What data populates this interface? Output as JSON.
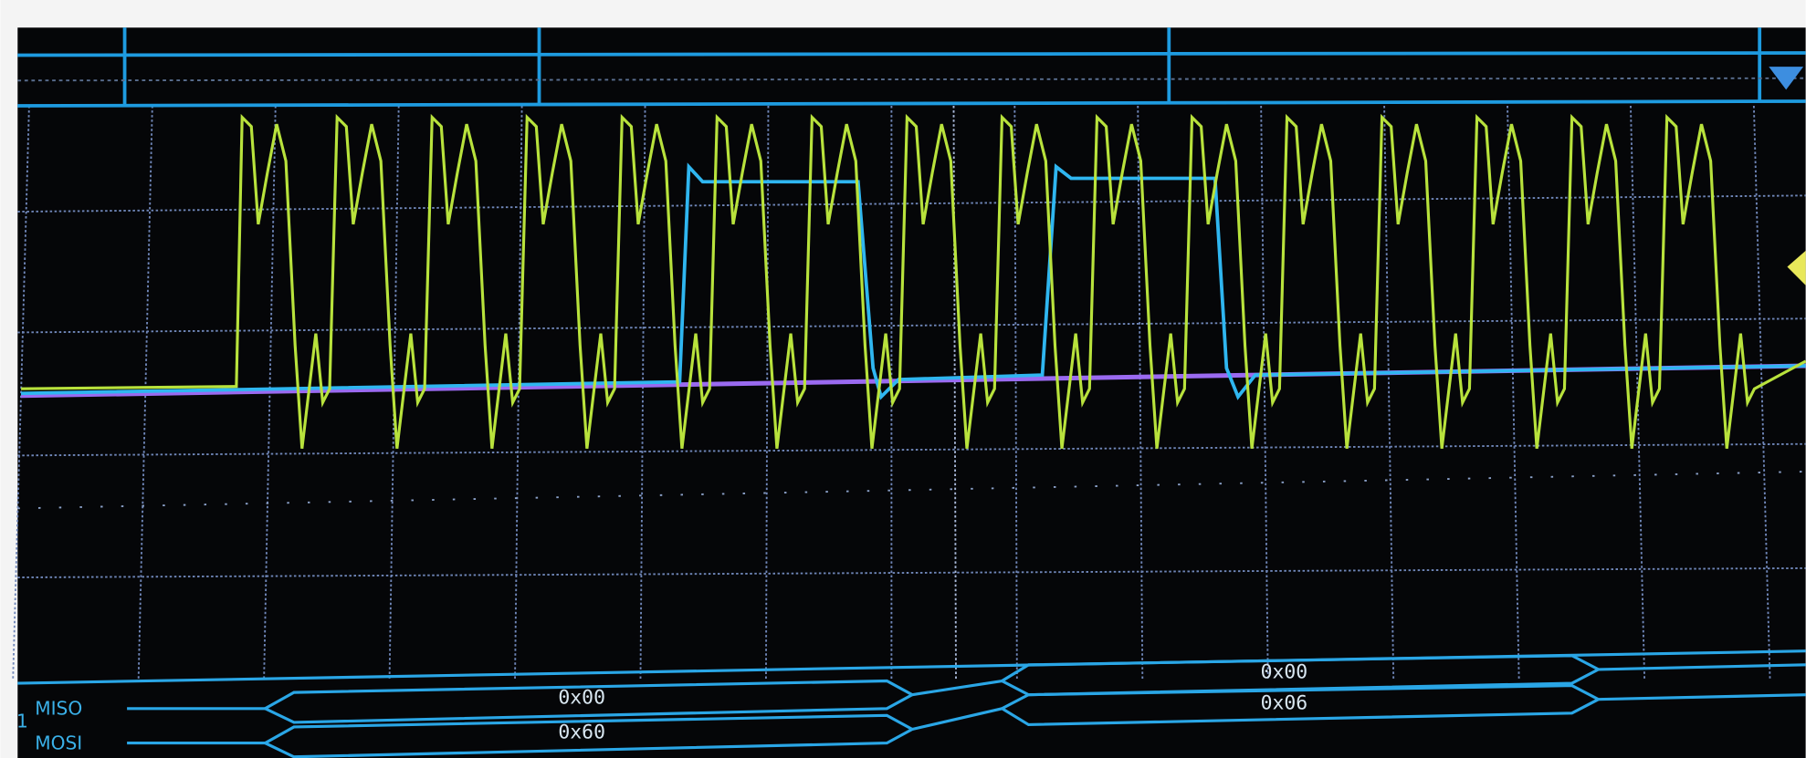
{
  "channel": "1",
  "buses": [
    {
      "name": "MISO",
      "frames": [
        "0x00",
        "0x00"
      ]
    },
    {
      "name": "MOSI",
      "frames": [
        "0x60",
        "0x06"
      ]
    }
  ]
}
